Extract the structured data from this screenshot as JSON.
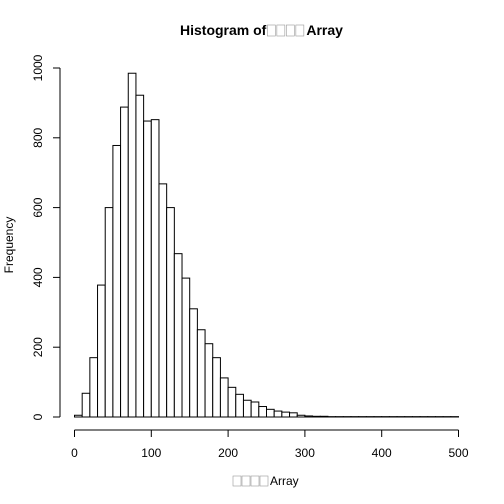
{
  "chart_data": {
    "type": "bar",
    "title": "Histogram of □□□□Array",
    "title_prefix": "Histogram of ",
    "variable_suffix": "Array",
    "missing_glyph_count": 4,
    "xlabel": "□□□□Array",
    "ylabel": "Frequency",
    "xlim": [
      0,
      500
    ],
    "ylim": [
      0,
      1000
    ],
    "x_ticks": [
      0,
      100,
      200,
      300,
      400,
      500
    ],
    "y_ticks": [
      0,
      200,
      400,
      600,
      800,
      1000
    ],
    "bin_width": 10,
    "bin_start": 0,
    "values": [
      5,
      68,
      170,
      378,
      600,
      778,
      888,
      985,
      922,
      848,
      852,
      668,
      600,
      468,
      398,
      310,
      250,
      210,
      170,
      112,
      85,
      65,
      48,
      43,
      30,
      22,
      17,
      14,
      12,
      5,
      3,
      2,
      2,
      1,
      1,
      1,
      1,
      1,
      1,
      1,
      1,
      1,
      1,
      1,
      1,
      1,
      1,
      1,
      1,
      1
    ],
    "grid": false,
    "legend": "none",
    "colors": {
      "bar_fill": "#ffffff",
      "bar_stroke": "#000000"
    }
  }
}
